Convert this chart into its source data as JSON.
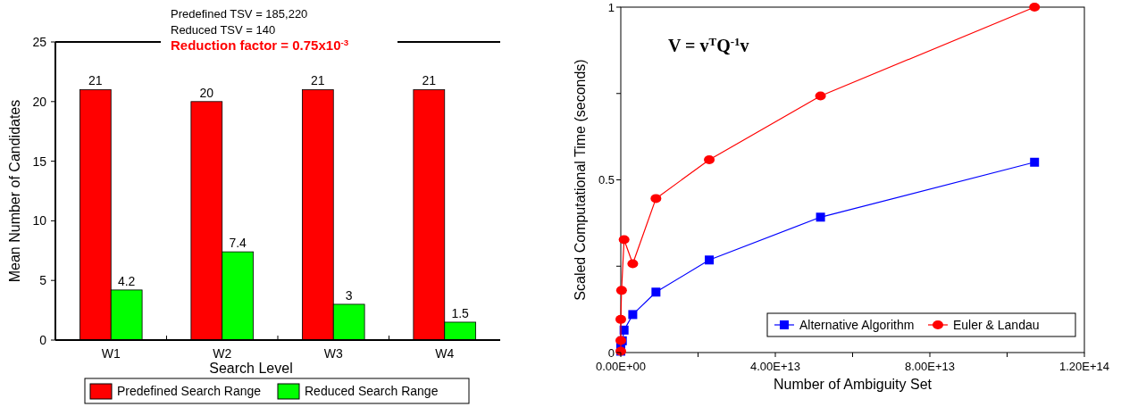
{
  "chart_data": [
    {
      "type": "bar",
      "annotations": [
        "Predefined TSV = 185,220",
        "Reduced TSV = 140",
        "Reduction factor = 0.75x10$^{-3}$"
      ],
      "xlabel": "Search Level",
      "ylabel": "Mean Number of Candidates",
      "categories": [
        "W1",
        "W2",
        "W3",
        "W4"
      ],
      "series": [
        {
          "name": "Predefined Search Range",
          "color": "#ff0000",
          "values": [
            21,
            20,
            21,
            21
          ]
        },
        {
          "name": "Reduced Search Range",
          "color": "#00ff00",
          "values": [
            4.2,
            7.4,
            3,
            1.5
          ]
        }
      ],
      "data_labels": true,
      "ylim": [
        0,
        25
      ],
      "yticks": [
        0,
        5,
        10,
        15,
        20,
        25
      ],
      "legend": "bottom",
      "grid": false
    },
    {
      "type": "line",
      "annotations": [
        "V = v$^{T}$Q$^{-1}$v"
      ],
      "xlabel": "Number of Ambiguity Set",
      "ylabel": "Scaled Computational Time (seconds)",
      "series": [
        {
          "name": "Alternative Algorithm",
          "color": "#0000ff",
          "marker": "square",
          "x": [
            0,
            0,
            400000000000.0,
            850000000000.0,
            3100000000000.0,
            9100000000000.0,
            22900000000000.0,
            51700000000000.0,
            107100000000000.0
          ],
          "values": [
            0.004,
            0.02,
            0.034,
            0.065,
            0.11,
            0.175,
            0.268,
            0.392,
            0.551
          ]
        },
        {
          "name": "Euler & Landau",
          "color": "#ff0000",
          "marker": "circle",
          "x": [
            0,
            0,
            0,
            200000000000.0,
            850000000000.0,
            3100000000000.0,
            9100000000000.0,
            22900000000000.0,
            51700000000000.0,
            107100000000000.0
          ],
          "values": [
            0.004,
            0.035,
            0.096,
            0.18,
            0.327,
            0.257,
            0.446,
            0.558,
            0.743,
            1.0
          ]
        }
      ],
      "xlim": [
        0,
        120000000000000.0
      ],
      "xticks": [
        {
          "value": 0,
          "label": "0.00E+00"
        },
        {
          "value": 20000000000000.0,
          "label": null
        },
        {
          "value": 40000000000000.0,
          "label": "4.00E+13"
        },
        {
          "value": 60000000000000.0,
          "label": null
        },
        {
          "value": 80000000000000.0,
          "label": "8.00E+13"
        },
        {
          "value": 100000000000000.0,
          "label": null
        },
        {
          "value": 120000000000000.0,
          "label": "1.20E+14"
        }
      ],
      "ylim": [
        0,
        1
      ],
      "yticks": [
        0,
        {
          "value": 0.25,
          "label": null
        },
        0.5,
        {
          "value": 0.75,
          "label": null
        },
        1
      ],
      "legend": "bottom right",
      "grid": false
    }
  ]
}
